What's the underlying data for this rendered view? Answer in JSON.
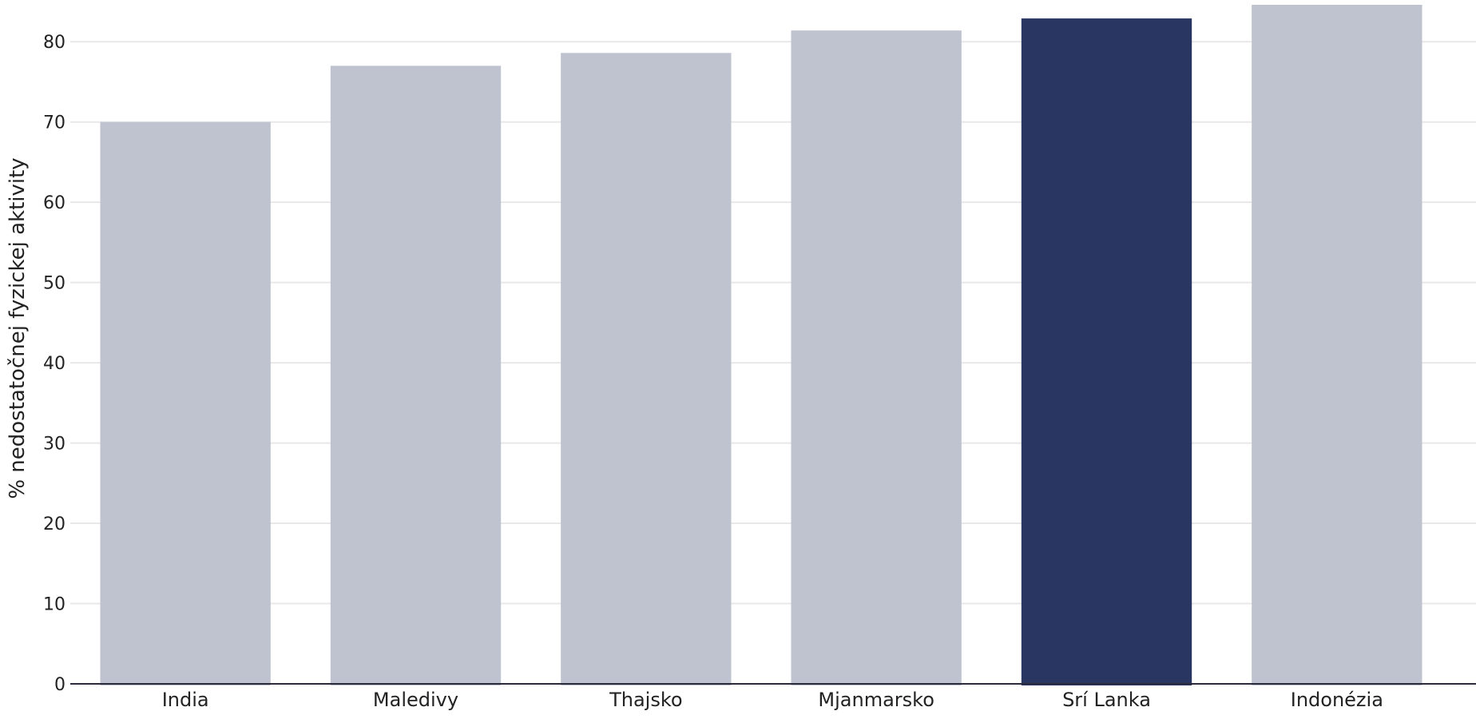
{
  "chart_data": {
    "type": "bar",
    "title": "",
    "xlabel": "",
    "ylabel": "% nedostatočnej fyzickej aktivity",
    "categories": [
      "India",
      "Maledivy",
      "Thajsko",
      "Mjanmarsko",
      "Srí Lanka",
      "Indonézia"
    ],
    "values": [
      70.0,
      77.0,
      78.6,
      81.4,
      82.9,
      84.6
    ],
    "highlight_category": "Srí Lanka",
    "ylim": [
      0,
      84.6
    ],
    "yticks": [
      0,
      10,
      20,
      30,
      40,
      50,
      60,
      70,
      80
    ],
    "grid": true,
    "legend": "none",
    "colors": {
      "bar": "#bfc3cf",
      "highlight": "#2a3662",
      "grid": "#e8e8e8",
      "axis": "#2b2b3b",
      "text": "#222222"
    }
  }
}
